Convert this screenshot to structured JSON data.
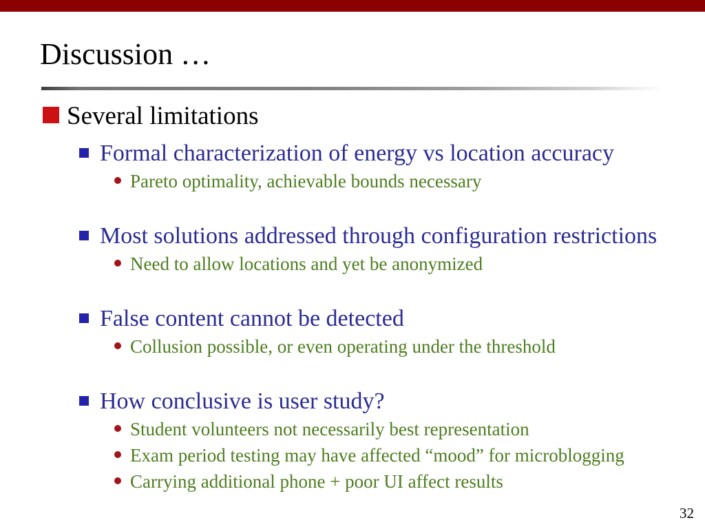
{
  "slide": {
    "title": "Discussion …",
    "page_number": "32",
    "colors": {
      "top_bar": "#8B0000",
      "level1_bullet": "#CB1111",
      "level2_bullet": "#2222AA",
      "level2_text": "#2B2B94",
      "level3_bullet": "#A31419",
      "level3_text": "#4C7D1E"
    },
    "content": {
      "level1": "Several limitations",
      "groups": [
        {
          "heading": "Formal characterization of energy vs location accuracy",
          "subitems": [
            "Pareto optimality, achievable bounds necessary"
          ]
        },
        {
          "heading": "Most solutions addressed through configuration restrictions",
          "subitems": [
            "Need to allow locations and yet be anonymized"
          ]
        },
        {
          "heading": "False content cannot be detected",
          "subitems": [
            "Collusion possible, or even operating under the threshold"
          ]
        },
        {
          "heading": "How conclusive is user study?",
          "subitems": [
            "Student volunteers not necessarily best representation",
            "Exam period testing may have affected “mood” for microblogging",
            "Carrying additional phone + poor UI affect results"
          ]
        }
      ]
    }
  }
}
